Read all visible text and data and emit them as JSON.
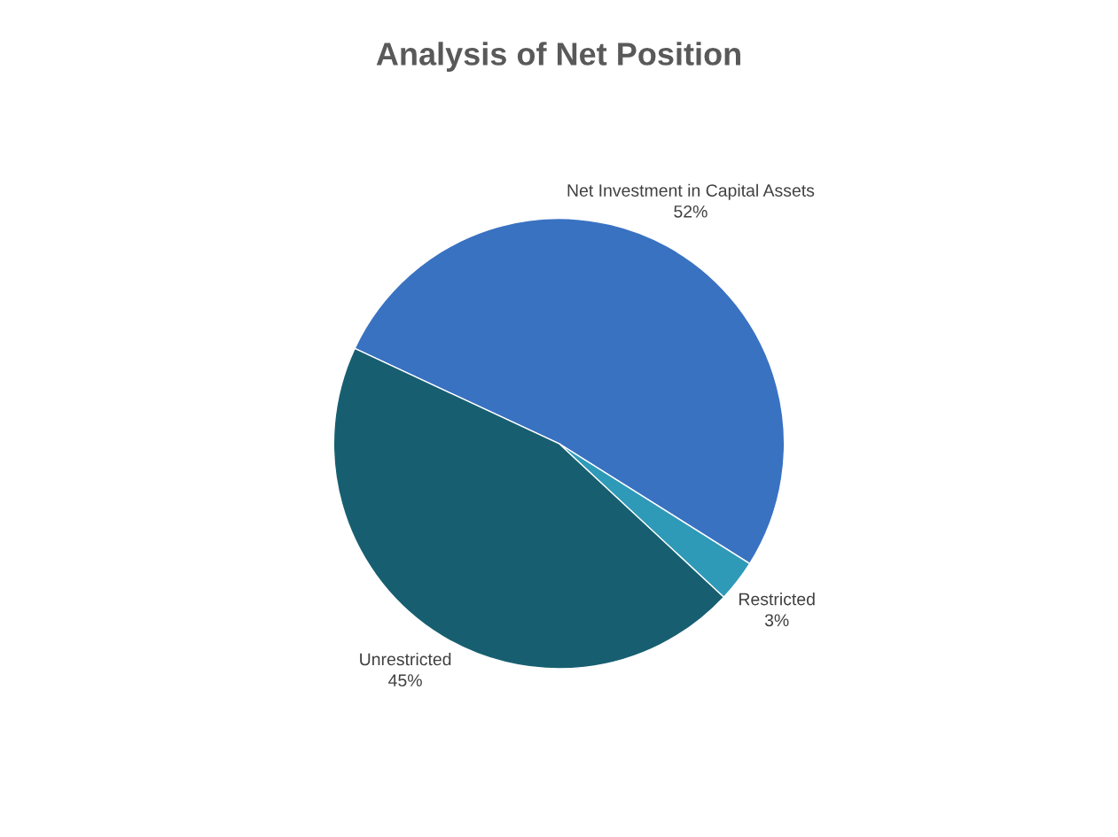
{
  "chart_data": {
    "type": "pie",
    "title": "Analysis of Net Position",
    "categories": [
      "Net Investment in Capital Assets",
      "Restricted",
      "Unrestricted"
    ],
    "values": [
      52,
      3,
      45
    ],
    "value_labels": [
      "52%",
      "3%",
      "45%"
    ],
    "colors": [
      "#3a72c2",
      "#2e9ab8",
      "#175f70"
    ],
    "legend": false
  }
}
